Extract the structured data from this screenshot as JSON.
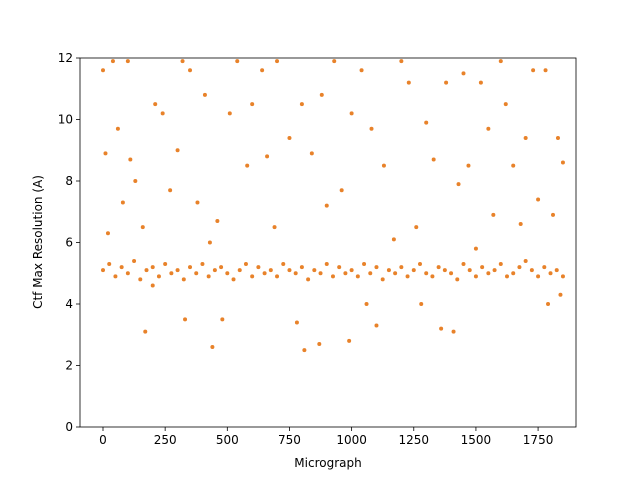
{
  "chart_data": {
    "type": "scatter",
    "x_label": "Micrograph",
    "y_label": "Ctf Max Resolution (A)",
    "color": "#e8822a",
    "xlim": [
      -92.5,
      1902.5
    ],
    "ylim": [
      0,
      12
    ],
    "xticks": [
      0,
      250,
      500,
      750,
      1000,
      1250,
      1500,
      1750
    ],
    "yticks": [
      0,
      2,
      4,
      6,
      8,
      10,
      12
    ],
    "x": [
      0,
      25,
      50,
      75,
      100,
      125,
      150,
      175,
      200,
      225,
      250,
      275,
      300,
      325,
      350,
      375,
      400,
      425,
      450,
      475,
      500,
      525,
      550,
      575,
      600,
      625,
      650,
      675,
      700,
      725,
      750,
      775,
      800,
      825,
      850,
      875,
      900,
      925,
      950,
      975,
      1000,
      1025,
      1050,
      1075,
      1100,
      1125,
      1150,
      1175,
      1200,
      1225,
      1250,
      1275,
      1300,
      1325,
      1350,
      1375,
      1400,
      1425,
      1450,
      1475,
      1500,
      1525,
      1550,
      1575,
      1600,
      1625,
      1650,
      1675,
      1700,
      1725,
      1750,
      1775,
      1800,
      1825,
      1850,
      0,
      10,
      20,
      40,
      60,
      80,
      100,
      110,
      130,
      160,
      170,
      200,
      210,
      240,
      270,
      300,
      320,
      330,
      350,
      380,
      410,
      430,
      440,
      460,
      480,
      510,
      540,
      580,
      600,
      640,
      660,
      690,
      700,
      750,
      780,
      800,
      810,
      840,
      870,
      880,
      900,
      930,
      960,
      990,
      1000,
      1040,
      1060,
      1080,
      1100,
      1130,
      1170,
      1200,
      1230,
      1260,
      1280,
      1300,
      1330,
      1360,
      1380,
      1410,
      1430,
      1450,
      1470,
      1500,
      1520,
      1550,
      1570,
      1600,
      1620,
      1650,
      1680,
      1700,
      1730,
      1750,
      1780,
      1790,
      1810,
      1830,
      1840,
      1850
    ],
    "y": [
      5.1,
      5.3,
      4.9,
      5.2,
      5.0,
      5.4,
      4.8,
      5.1,
      5.2,
      4.9,
      5.3,
      5.0,
      5.1,
      4.8,
      5.2,
      5.0,
      5.3,
      4.9,
      5.1,
      5.2,
      5.0,
      4.8,
      5.1,
      5.3,
      4.9,
      5.2,
      5.0,
      5.1,
      4.9,
      5.3,
      5.1,
      5.0,
      5.2,
      4.8,
      5.1,
      5.0,
      5.3,
      4.9,
      5.2,
      5.0,
      5.1,
      4.9,
      5.3,
      5.0,
      5.2,
      4.8,
      5.1,
      5.0,
      5.2,
      4.9,
      5.1,
      5.3,
      5.0,
      4.9,
      5.2,
      5.1,
      5.0,
      4.8,
      5.3,
      5.1,
      4.9,
      5.2,
      5.0,
      5.1,
      5.3,
      4.9,
      5.0,
      5.2,
      5.4,
      5.1,
      4.9,
      5.2,
      5.0,
      5.1,
      4.9,
      11.6,
      8.9,
      6.3,
      11.9,
      9.7,
      7.3,
      11.9,
      8.7,
      8.0,
      6.5,
      3.1,
      4.6,
      10.5,
      10.2,
      7.7,
      9.0,
      11.9,
      3.5,
      11.6,
      7.3,
      10.8,
      6.0,
      2.6,
      6.7,
      3.5,
      10.2,
      11.9,
      8.5,
      10.5,
      11.6,
      8.8,
      6.5,
      11.9,
      9.4,
      3.4,
      10.5,
      2.5,
      8.9,
      2.7,
      10.8,
      7.2,
      11.9,
      7.7,
      2.8,
      10.2,
      11.6,
      4.0,
      9.7,
      3.3,
      8.5,
      6.1,
      11.9,
      11.2,
      6.5,
      4.0,
      9.9,
      8.7,
      3.2,
      11.2,
      3.1,
      7.9,
      11.5,
      8.5,
      5.8,
      11.2,
      9.7,
      6.9,
      11.9,
      10.5,
      8.5,
      6.6,
      9.4,
      11.6,
      7.4,
      11.6,
      4.0,
      6.9,
      9.4,
      4.3,
      8.6
    ]
  }
}
